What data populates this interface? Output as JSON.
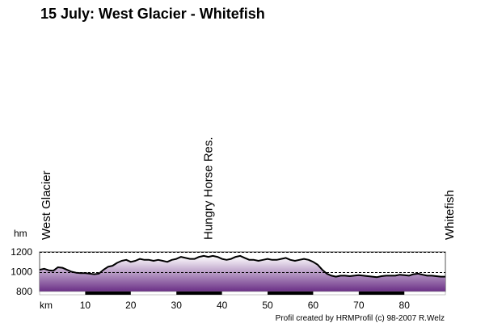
{
  "chart_data": {
    "type": "area",
    "title": "15 July: West Glacier - Whitefish",
    "xlabel": "km",
    "ylabel": "hm",
    "xlim": [
      0,
      89
    ],
    "ylim": [
      800,
      1200
    ],
    "x_ticks": [
      10,
      20,
      30,
      40,
      50,
      60,
      70,
      80
    ],
    "y_ticks": [
      800,
      1000,
      1200
    ],
    "gridlines": [
      1000,
      1200
    ],
    "waypoints": [
      {
        "label": "West Glacier",
        "km": 0
      },
      {
        "label": "Hungry Horse Res.",
        "km": 37
      },
      {
        "label": "Whitefish",
        "km": 89
      }
    ],
    "x": [
      0,
      1,
      2,
      3,
      4,
      5,
      6,
      7,
      8,
      9,
      10,
      11,
      12,
      13,
      14,
      15,
      16,
      17,
      18,
      19,
      20,
      21,
      22,
      23,
      24,
      25,
      26,
      27,
      28,
      29,
      30,
      31,
      32,
      33,
      34,
      35,
      36,
      37,
      38,
      39,
      40,
      41,
      42,
      43,
      44,
      45,
      46,
      47,
      48,
      49,
      50,
      51,
      52,
      53,
      54,
      55,
      56,
      57,
      58,
      59,
      60,
      61,
      62,
      63,
      64,
      65,
      66,
      67,
      68,
      69,
      70,
      71,
      72,
      73,
      74,
      75,
      76,
      77,
      78,
      79,
      80,
      81,
      82,
      83,
      84,
      85,
      86,
      87,
      88,
      89
    ],
    "values": [
      1020,
      1030,
      1015,
      1010,
      1045,
      1040,
      1020,
      1000,
      990,
      985,
      985,
      980,
      975,
      980,
      1020,
      1050,
      1060,
      1090,
      1110,
      1120,
      1100,
      1110,
      1130,
      1120,
      1120,
      1110,
      1120,
      1110,
      1100,
      1120,
      1130,
      1150,
      1140,
      1130,
      1130,
      1150,
      1160,
      1150,
      1160,
      1150,
      1130,
      1120,
      1130,
      1150,
      1160,
      1140,
      1120,
      1120,
      1110,
      1120,
      1130,
      1120,
      1120,
      1130,
      1140,
      1120,
      1110,
      1120,
      1130,
      1120,
      1100,
      1070,
      1020,
      980,
      960,
      950,
      960,
      960,
      955,
      960,
      965,
      960,
      955,
      950,
      945,
      955,
      960,
      960,
      960,
      970,
      965,
      960,
      975,
      980,
      970,
      960,
      960,
      955,
      950,
      950
    ],
    "grid": true,
    "legend": "none"
  },
  "credit": "Profil created by HRMProfil (c) 98-2007 R.Welz",
  "colors": {
    "fill_top": "#ffffff",
    "fill_bottom": "#6a2f86",
    "line": "#000000",
    "background": "#ffffff"
  }
}
